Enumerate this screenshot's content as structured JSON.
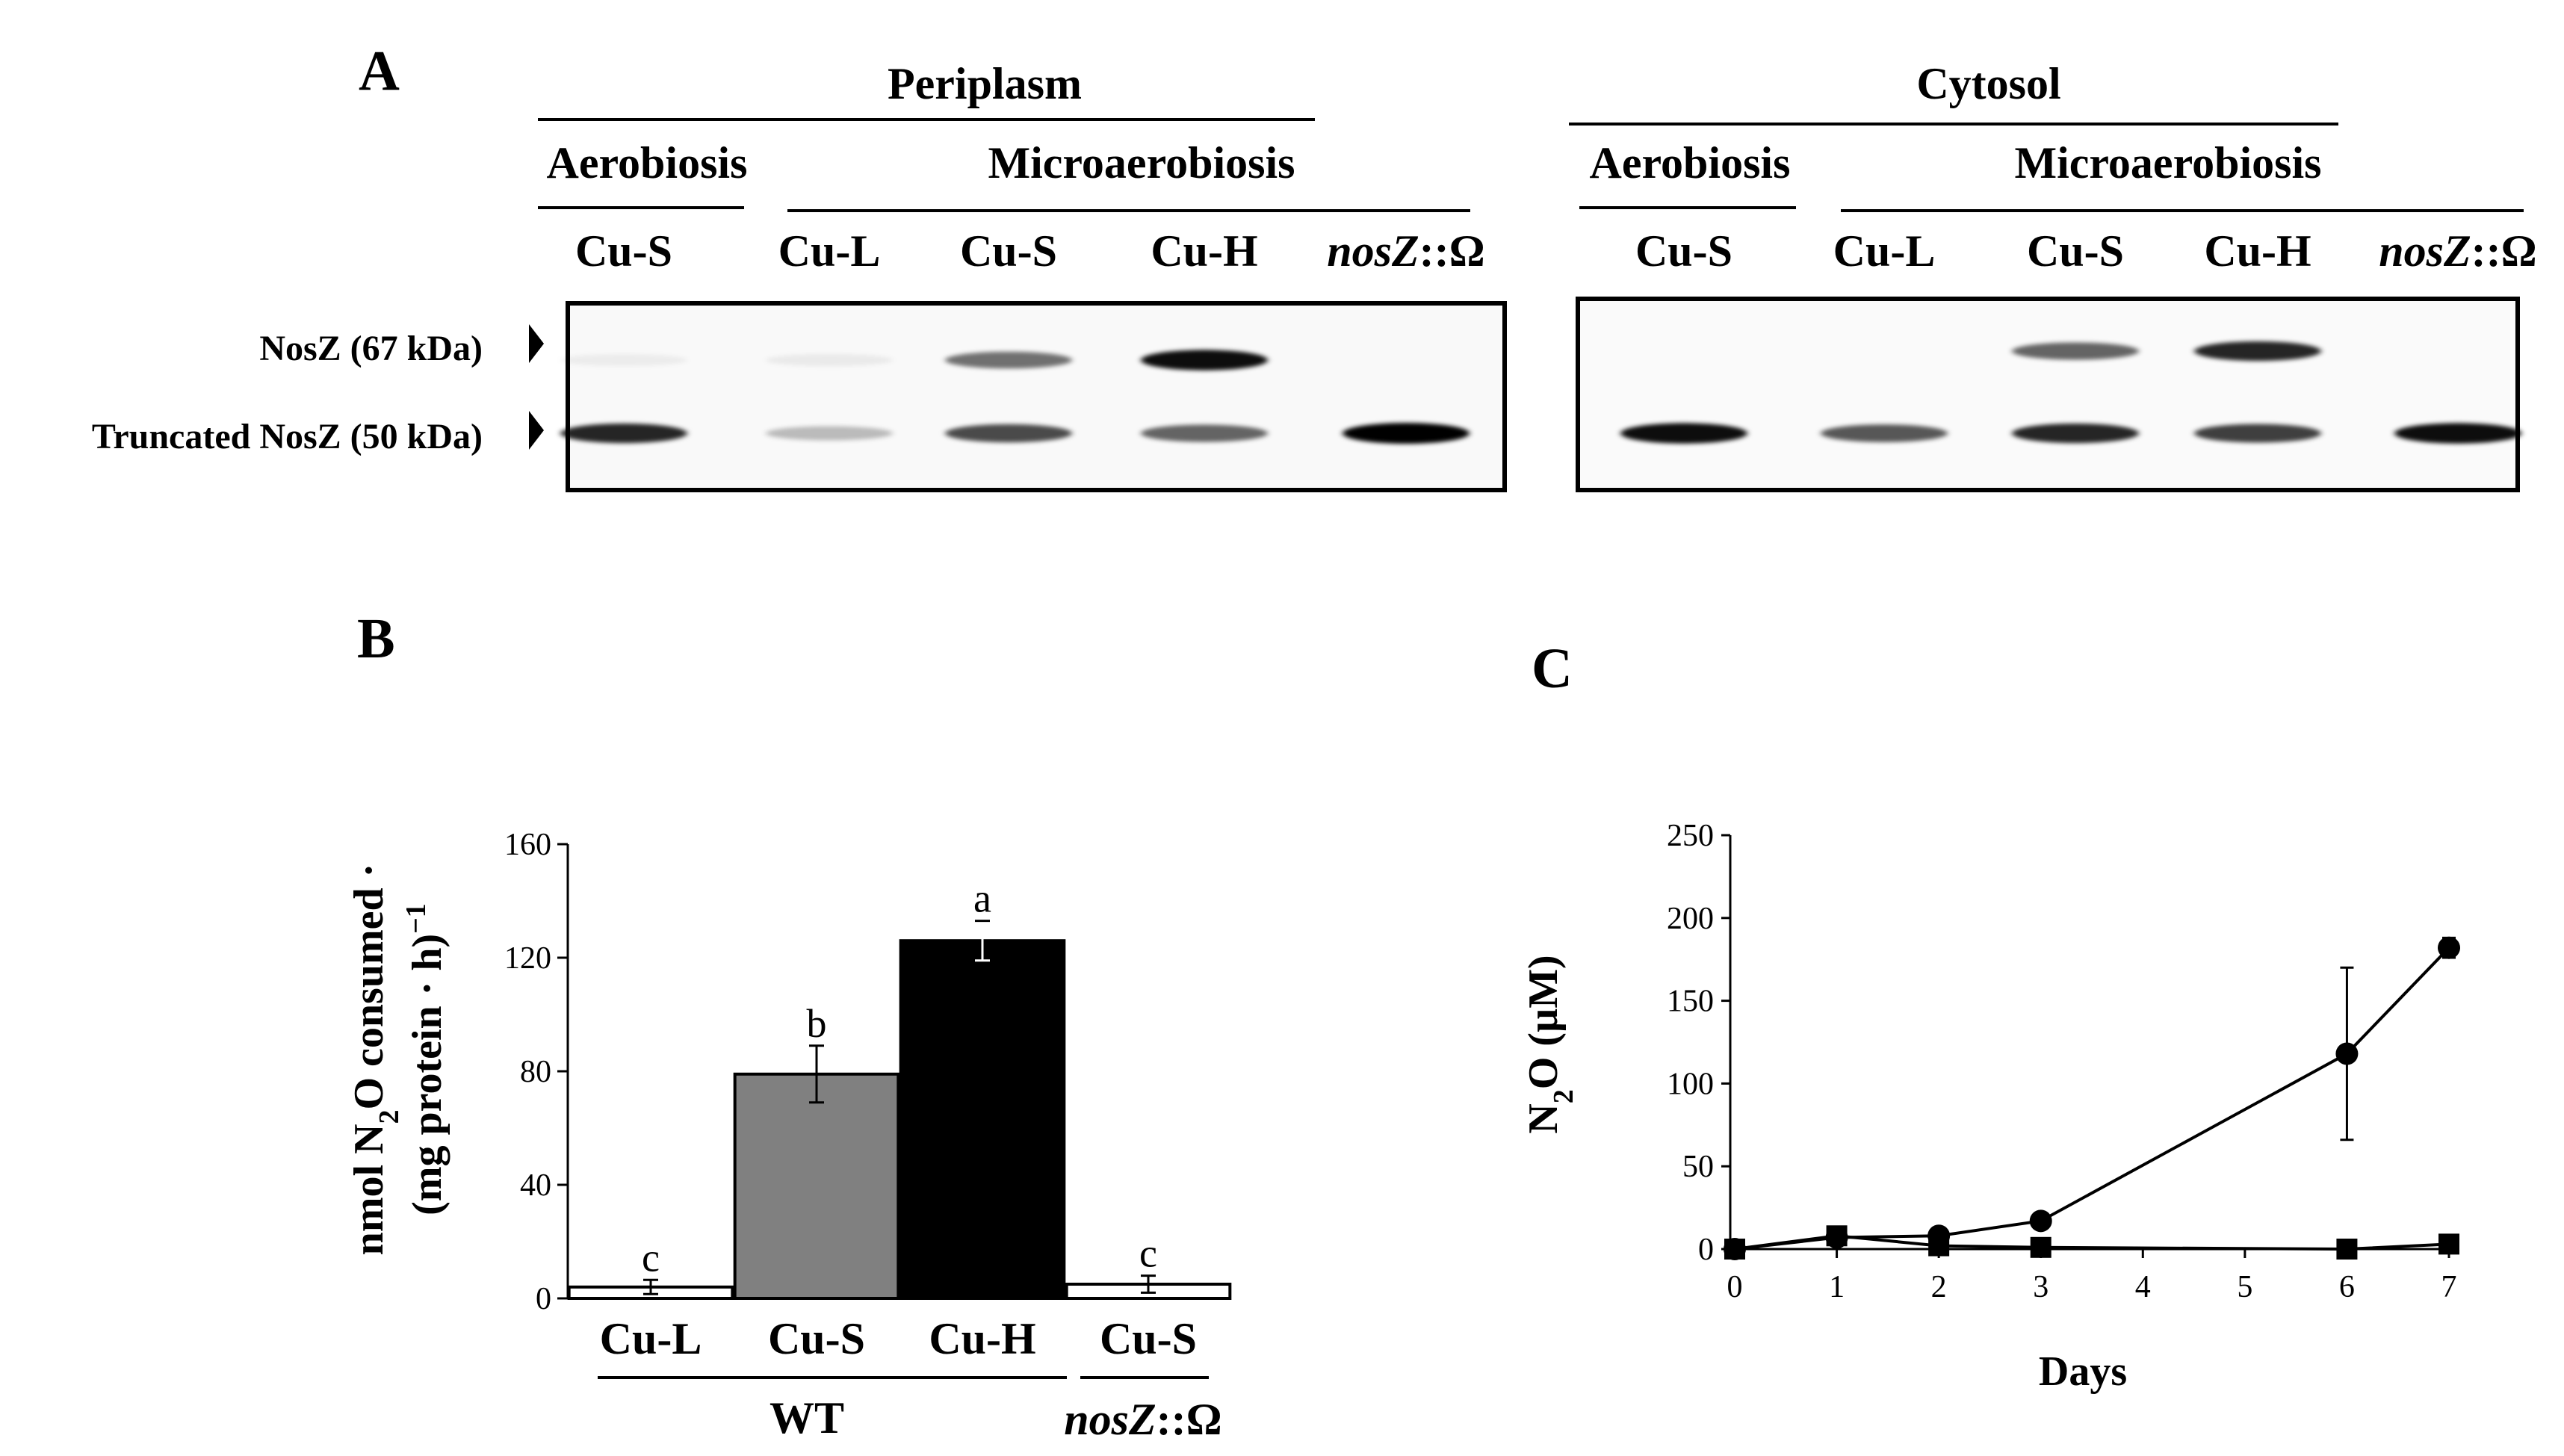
{
  "figure": {
    "panel_a": {
      "letter": "A",
      "groups": [
        {
          "compartment": "Periplasm",
          "conditions": {
            "aero": "Aerobiosis",
            "micro": "Microaerobiosis"
          },
          "lanes": [
            {
              "label": "Cu-S",
              "italic": false
            },
            {
              "label": "Cu-L",
              "italic": false
            },
            {
              "label": "Cu-S",
              "italic": false
            },
            {
              "label": "Cu-H",
              "italic": false
            },
            {
              "label_it": "nosZ",
              "label_rest": "::Ω",
              "italic": true
            }
          ]
        },
        {
          "compartment": "Cytosol",
          "conditions": {
            "aero": "Aerobiosis",
            "micro": "Microaerobiosis"
          },
          "lanes": [
            {
              "label": "Cu-S",
              "italic": false
            },
            {
              "label": "Cu-L",
              "italic": false
            },
            {
              "label": "Cu-S",
              "italic": false
            },
            {
              "label": "Cu-H",
              "italic": false
            },
            {
              "label_it": "nosZ",
              "label_rest": "::Ω",
              "italic": true
            }
          ]
        }
      ],
      "band_labels": [
        "NosZ (67 kDa)",
        "Truncated NosZ (50 kDa)"
      ],
      "blots": [
        {
          "name": "periplasm",
          "full_length_intensity": [
            0.05,
            0.06,
            0.55,
            0.95,
            0.0
          ],
          "truncated_intensity": [
            0.85,
            0.25,
            0.7,
            0.6,
            1.0
          ]
        },
        {
          "name": "cytosol",
          "full_length_intensity": [
            0.0,
            0.0,
            0.6,
            0.85,
            0.0
          ],
          "truncated_intensity": [
            0.95,
            0.65,
            0.85,
            0.75,
            0.95
          ]
        }
      ]
    },
    "panel_b": {
      "letter": "B",
      "ylabel_line1_pre": "nmol N",
      "ylabel_line1_sub": "2",
      "ylabel_line1_post": "O consumed ·",
      "ylabel_line2_pre": "(mg protein · h)",
      "ylabel_line2_sup": "−1",
      "group_wt": "WT",
      "group_mut_it": "nosZ",
      "group_mut_rest": "::Ω"
    },
    "panel_c": {
      "letter": "C",
      "ylabel_pre": "N",
      "ylabel_sub": "2",
      "ylabel_post": "O (µM)",
      "xlabel": "Days"
    }
  },
  "chart_data": [
    {
      "type": "bar",
      "categories": [
        "Cu-L",
        "Cu-S",
        "Cu-H",
        "Cu-S"
      ],
      "values": [
        4,
        79,
        126,
        5
      ],
      "errors": [
        2.5,
        10,
        7,
        3
      ],
      "significance": [
        "c",
        "b",
        "a",
        "c"
      ],
      "fills": [
        "#ffffff",
        "#808080",
        "#000000",
        "#ffffff"
      ],
      "ylim": [
        0,
        160
      ],
      "yticks": [
        0,
        40,
        80,
        120,
        160
      ],
      "ytick_labels": [
        "0",
        "40",
        "80",
        "120",
        "160"
      ]
    },
    {
      "type": "line",
      "x": [
        0,
        1,
        2,
        3,
        6,
        7
      ],
      "series": [
        {
          "marker": "circle",
          "values": [
            0,
            7,
            8,
            17,
            118,
            182
          ],
          "errors": [
            0,
            2,
            2,
            3,
            52,
            6
          ]
        },
        {
          "marker": "square",
          "values": [
            0,
            8,
            2,
            1,
            0,
            3
          ],
          "errors": [
            0,
            2,
            1,
            1,
            1,
            1
          ]
        }
      ],
      "xlim": [
        0,
        7
      ],
      "ylim": [
        0,
        250
      ],
      "xticks": [
        0,
        1,
        2,
        3,
        4,
        5,
        6,
        7
      ],
      "xtick_labels": [
        "0",
        "1",
        "2",
        "3",
        "4",
        "5",
        "6",
        "7"
      ],
      "yticks": [
        0,
        50,
        100,
        150,
        200,
        250
      ],
      "ytick_labels": [
        "0",
        "50",
        "100",
        "150",
        "200",
        "250"
      ]
    }
  ]
}
